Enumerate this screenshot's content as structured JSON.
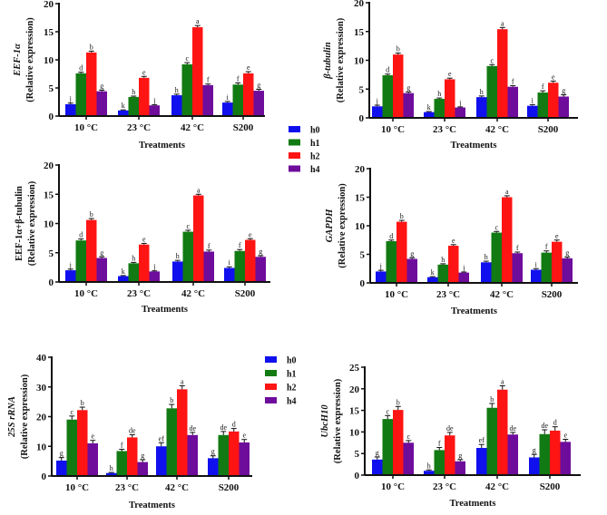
{
  "legend": {
    "series_names": [
      "h0",
      "h1",
      "h2",
      "h4"
    ],
    "colors": [
      "#1010ee",
      "#127a12",
      "#ff1414",
      "#6e0c9c"
    ]
  },
  "chart_data": [
    {
      "type": "bar",
      "title": "",
      "ylabel_gene": "EEF-1α",
      "ylabel_gene_italic": true,
      "ylabel": "(Relative expression)",
      "xlabel": "Treatments",
      "categories": [
        "10 °C",
        "23 °C",
        "42 °C",
        "S200"
      ],
      "ylim": [
        0,
        20
      ],
      "yticks": [
        0,
        5,
        10,
        15,
        20
      ],
      "series": [
        {
          "name": "h0",
          "values": [
            2.1,
            1.0,
            3.7,
            2.4
          ],
          "errors": [
            0.2,
            0.1,
            0.2,
            0.2
          ],
          "letters": [
            "j",
            "k",
            "h",
            "i"
          ]
        },
        {
          "name": "h1",
          "values": [
            7.6,
            3.4,
            9.2,
            5.6
          ],
          "errors": [
            0.2,
            0.15,
            0.3,
            0.3
          ],
          "letters": [
            "d",
            "h",
            "c",
            "f"
          ]
        },
        {
          "name": "h2",
          "values": [
            11.3,
            6.8,
            15.8,
            7.6
          ],
          "errors": [
            0.25,
            0.25,
            0.3,
            0.3
          ],
          "letters": [
            "b",
            "e",
            "a",
            "e"
          ]
        },
        {
          "name": "h4",
          "values": [
            4.4,
            1.9,
            5.5,
            4.5
          ],
          "errors": [
            0.2,
            0.1,
            0.2,
            0.25
          ],
          "letters": [
            "g",
            "j",
            "f",
            "g"
          ]
        }
      ],
      "show_xlabel": true,
      "legend": "right"
    },
    {
      "type": "bar",
      "title": "",
      "ylabel_gene": "β-tubulin",
      "ylabel_gene_italic": true,
      "ylabel": "(Relative expression)",
      "xlabel": "Treatments",
      "categories": [
        "10 °C",
        "23 °C",
        "42 °C",
        "S200"
      ],
      "ylim": [
        0,
        20
      ],
      "yticks": [
        0,
        5,
        10,
        15,
        20
      ],
      "series": [
        {
          "name": "h0",
          "values": [
            2.0,
            1.0,
            3.6,
            2.1
          ],
          "errors": [
            0.2,
            0.1,
            0.2,
            0.2
          ],
          "letters": [
            "j",
            "k",
            "h",
            "i"
          ]
        },
        {
          "name": "h1",
          "values": [
            7.4,
            3.3,
            9.0,
            4.4
          ],
          "errors": [
            0.2,
            0.15,
            0.25,
            0.3
          ],
          "letters": [
            "d",
            "h",
            "c",
            "f"
          ]
        },
        {
          "name": "h2",
          "values": [
            11.0,
            6.7,
            15.4,
            6.1
          ],
          "errors": [
            0.25,
            0.2,
            0.3,
            0.3
          ],
          "letters": [
            "b",
            "e",
            "a",
            "e"
          ]
        },
        {
          "name": "h4",
          "values": [
            4.3,
            1.8,
            5.4,
            3.7
          ],
          "errors": [
            0.2,
            0.1,
            0.2,
            0.3
          ],
          "letters": [
            "g",
            "j",
            "f",
            "g"
          ]
        }
      ],
      "show_xlabel": true
    },
    {
      "type": "bar",
      "title": "",
      "ylabel_gene": "EEF-1α+β-tubulin",
      "ylabel_gene_italic": false,
      "ylabel": "(Relative expression)",
      "xlabel": "Treatments",
      "categories": [
        "10 °C",
        "23 °C",
        "42 °C",
        "S200"
      ],
      "ylim": [
        0,
        20
      ],
      "yticks": [
        0,
        5,
        10,
        15,
        20
      ],
      "series": [
        {
          "name": "h0",
          "values": [
            2.0,
            1.0,
            3.5,
            2.4
          ],
          "errors": [
            0.2,
            0.1,
            0.2,
            0.2
          ],
          "letters": [
            "j",
            "k",
            "h",
            "i"
          ]
        },
        {
          "name": "h1",
          "values": [
            7.1,
            3.2,
            8.6,
            5.3
          ],
          "errors": [
            0.25,
            0.15,
            0.25,
            0.25
          ],
          "letters": [
            "d",
            "h",
            "c",
            "f"
          ]
        },
        {
          "name": "h2",
          "values": [
            10.6,
            6.4,
            14.8,
            7.2
          ],
          "errors": [
            0.25,
            0.2,
            0.2,
            0.2
          ],
          "letters": [
            "b",
            "e",
            "a",
            "e"
          ]
        },
        {
          "name": "h4",
          "values": [
            4.1,
            1.8,
            5.2,
            4.3
          ],
          "errors": [
            0.2,
            0.1,
            0.25,
            0.2
          ],
          "letters": [
            "g",
            "j",
            "f",
            "g"
          ]
        }
      ],
      "show_xlabel": true
    },
    {
      "type": "bar",
      "title": "",
      "ylabel_gene": "GAPDH",
      "ylabel_gene_italic": true,
      "ylabel": "(Relative expression)",
      "xlabel": "Treatments",
      "categories": [
        "10 °C",
        "23 °C",
        "42 °C",
        "S200"
      ],
      "ylim": [
        0,
        20
      ],
      "yticks": [
        0,
        5,
        10,
        15,
        20
      ],
      "series": [
        {
          "name": "h0",
          "values": [
            2.0,
            1.0,
            3.6,
            2.3
          ],
          "errors": [
            0.2,
            0.1,
            0.2,
            0.2
          ],
          "letters": [
            "j",
            "k",
            "h",
            "i"
          ]
        },
        {
          "name": "h1",
          "values": [
            7.3,
            3.2,
            8.8,
            5.3
          ],
          "errors": [
            0.2,
            0.15,
            0.2,
            0.3
          ],
          "letters": [
            "d",
            "h",
            "c",
            "f"
          ]
        },
        {
          "name": "h2",
          "values": [
            10.7,
            6.5,
            15.0,
            7.2
          ],
          "errors": [
            0.25,
            0.2,
            0.25,
            0.3
          ],
          "letters": [
            "b",
            "e",
            "a",
            "e"
          ]
        },
        {
          "name": "h4",
          "values": [
            4.2,
            1.8,
            5.2,
            4.3
          ],
          "errors": [
            0.2,
            0.1,
            0.2,
            0.2
          ],
          "letters": [
            "g",
            "j",
            "f",
            "g"
          ]
        }
      ],
      "show_xlabel": true
    },
    {
      "type": "bar",
      "title": "",
      "ylabel_gene": "25S rRNA",
      "ylabel_gene_italic": true,
      "ylabel": "(Relative expression)",
      "xlabel": "Treatments",
      "categories": [
        "10 °C",
        "23 °C",
        "42 °C",
        "S200"
      ],
      "ylim": [
        0,
        40
      ],
      "yticks": [
        0,
        10,
        20,
        30,
        40
      ],
      "series": [
        {
          "name": "h0",
          "values": [
            5.2,
            1.0,
            10.0,
            6.0
          ],
          "errors": [
            1.0,
            0.2,
            1.2,
            0.8
          ],
          "letters": [
            "g",
            "h",
            "ef",
            "g"
          ]
        },
        {
          "name": "h1",
          "values": [
            19.0,
            8.4,
            22.8,
            13.8
          ],
          "errors": [
            1.2,
            0.6,
            1.3,
            1.2
          ],
          "letters": [
            "c",
            "f",
            "b",
            "de"
          ]
        },
        {
          "name": "h2",
          "values": [
            22.2,
            13.0,
            29.2,
            15.0
          ],
          "errors": [
            1.0,
            0.9,
            1.2,
            1.0
          ],
          "letters": [
            "b",
            "de",
            "a",
            "d"
          ]
        },
        {
          "name": "h4",
          "values": [
            11.0,
            4.7,
            13.8,
            11.3
          ],
          "errors": [
            1.0,
            0.8,
            0.9,
            1.0
          ],
          "letters": [
            "e",
            "g",
            "de",
            "e"
          ]
        }
      ],
      "show_xlabel": true,
      "legend": "right"
    },
    {
      "type": "bar",
      "title": "",
      "ylabel_gene": "UbcH10",
      "ylabel_gene_italic": true,
      "ylabel": "(Relative expression)",
      "xlabel": "Treatments",
      "categories": [
        "10 °C",
        "23 °C",
        "42 °C",
        "S200"
      ],
      "ylim": [
        0,
        25
      ],
      "yticks": [
        0,
        5,
        10,
        15,
        20,
        25
      ],
      "series": [
        {
          "name": "h0",
          "values": [
            3.6,
            1.0,
            6.3,
            4.1
          ],
          "errors": [
            0.6,
            0.2,
            0.8,
            0.7
          ],
          "letters": [
            "g",
            "h",
            "ef",
            "g"
          ]
        },
        {
          "name": "h1",
          "values": [
            13.0,
            5.8,
            15.6,
            9.5
          ],
          "errors": [
            0.8,
            0.6,
            1.0,
            1.0
          ],
          "letters": [
            "c",
            "f",
            "b",
            "de"
          ]
        },
        {
          "name": "h2",
          "values": [
            15.1,
            9.2,
            19.8,
            10.3
          ],
          "errors": [
            0.8,
            0.7,
            0.9,
            0.9
          ],
          "letters": [
            "b",
            "de",
            "a",
            "d"
          ]
        },
        {
          "name": "h4",
          "values": [
            7.5,
            3.2,
            9.4,
            7.7
          ],
          "errors": [
            0.5,
            0.4,
            0.5,
            0.6
          ],
          "letters": [
            "c",
            "g",
            "de",
            "e"
          ]
        }
      ],
      "show_xlabel": true
    }
  ]
}
